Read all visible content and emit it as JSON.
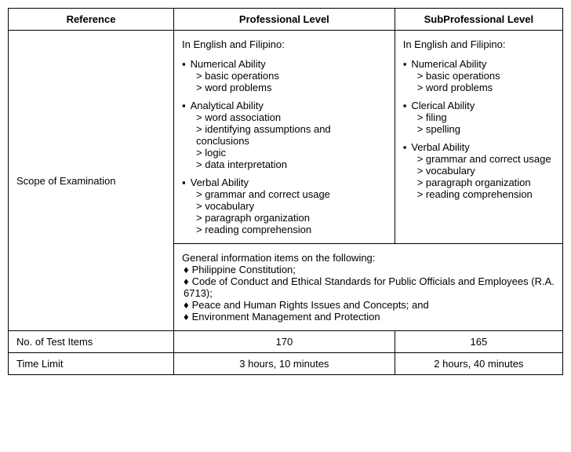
{
  "headers": {
    "reference": "Reference",
    "professional": "Professional Level",
    "subprofessional": "SubProfessional Level"
  },
  "rows": {
    "scope_label": "Scope of Examination",
    "test_items_label": "No. of Test Items",
    "time_limit_label": "Time Limit",
    "test_items_prof": "170",
    "test_items_sub": "165",
    "time_limit_prof": "3 hours, 10 minutes",
    "time_limit_sub": "2 hours, 40 minutes"
  },
  "professional": {
    "intro": "In English and Filipino:",
    "topics": [
      {
        "title": "Numerical Ability",
        "items": [
          "basic operations",
          "word problems"
        ]
      },
      {
        "title": "Analytical Ability",
        "items": [
          "word association",
          "identifying assumptions and conclusions",
          "logic",
          "data interpretation"
        ]
      },
      {
        "title": "Verbal Ability",
        "items": [
          "grammar and correct usage",
          "vocabulary",
          "paragraph organization",
          "reading comprehension"
        ]
      }
    ]
  },
  "subprofessional": {
    "intro": "In English and Filipino:",
    "topics": [
      {
        "title": "Numerical Ability",
        "items": [
          "basic operations",
          "word problems"
        ]
      },
      {
        "title": "Clerical Ability",
        "items": [
          "filing",
          "spelling"
        ]
      },
      {
        "title": "Verbal Ability",
        "items": [
          "grammar and correct usage",
          "vocabulary",
          "paragraph organization",
          "reading comprehension"
        ]
      }
    ]
  },
  "general_info": {
    "intro": "General information items on the following:",
    "items": [
      "Philippine Constitution;",
      "Code of Conduct and Ethical Standards for Public Officials and Employees (R.A. 6713);",
      "Peace and Human Rights Issues and Concepts; and",
      "Environment Management and Protection"
    ]
  }
}
